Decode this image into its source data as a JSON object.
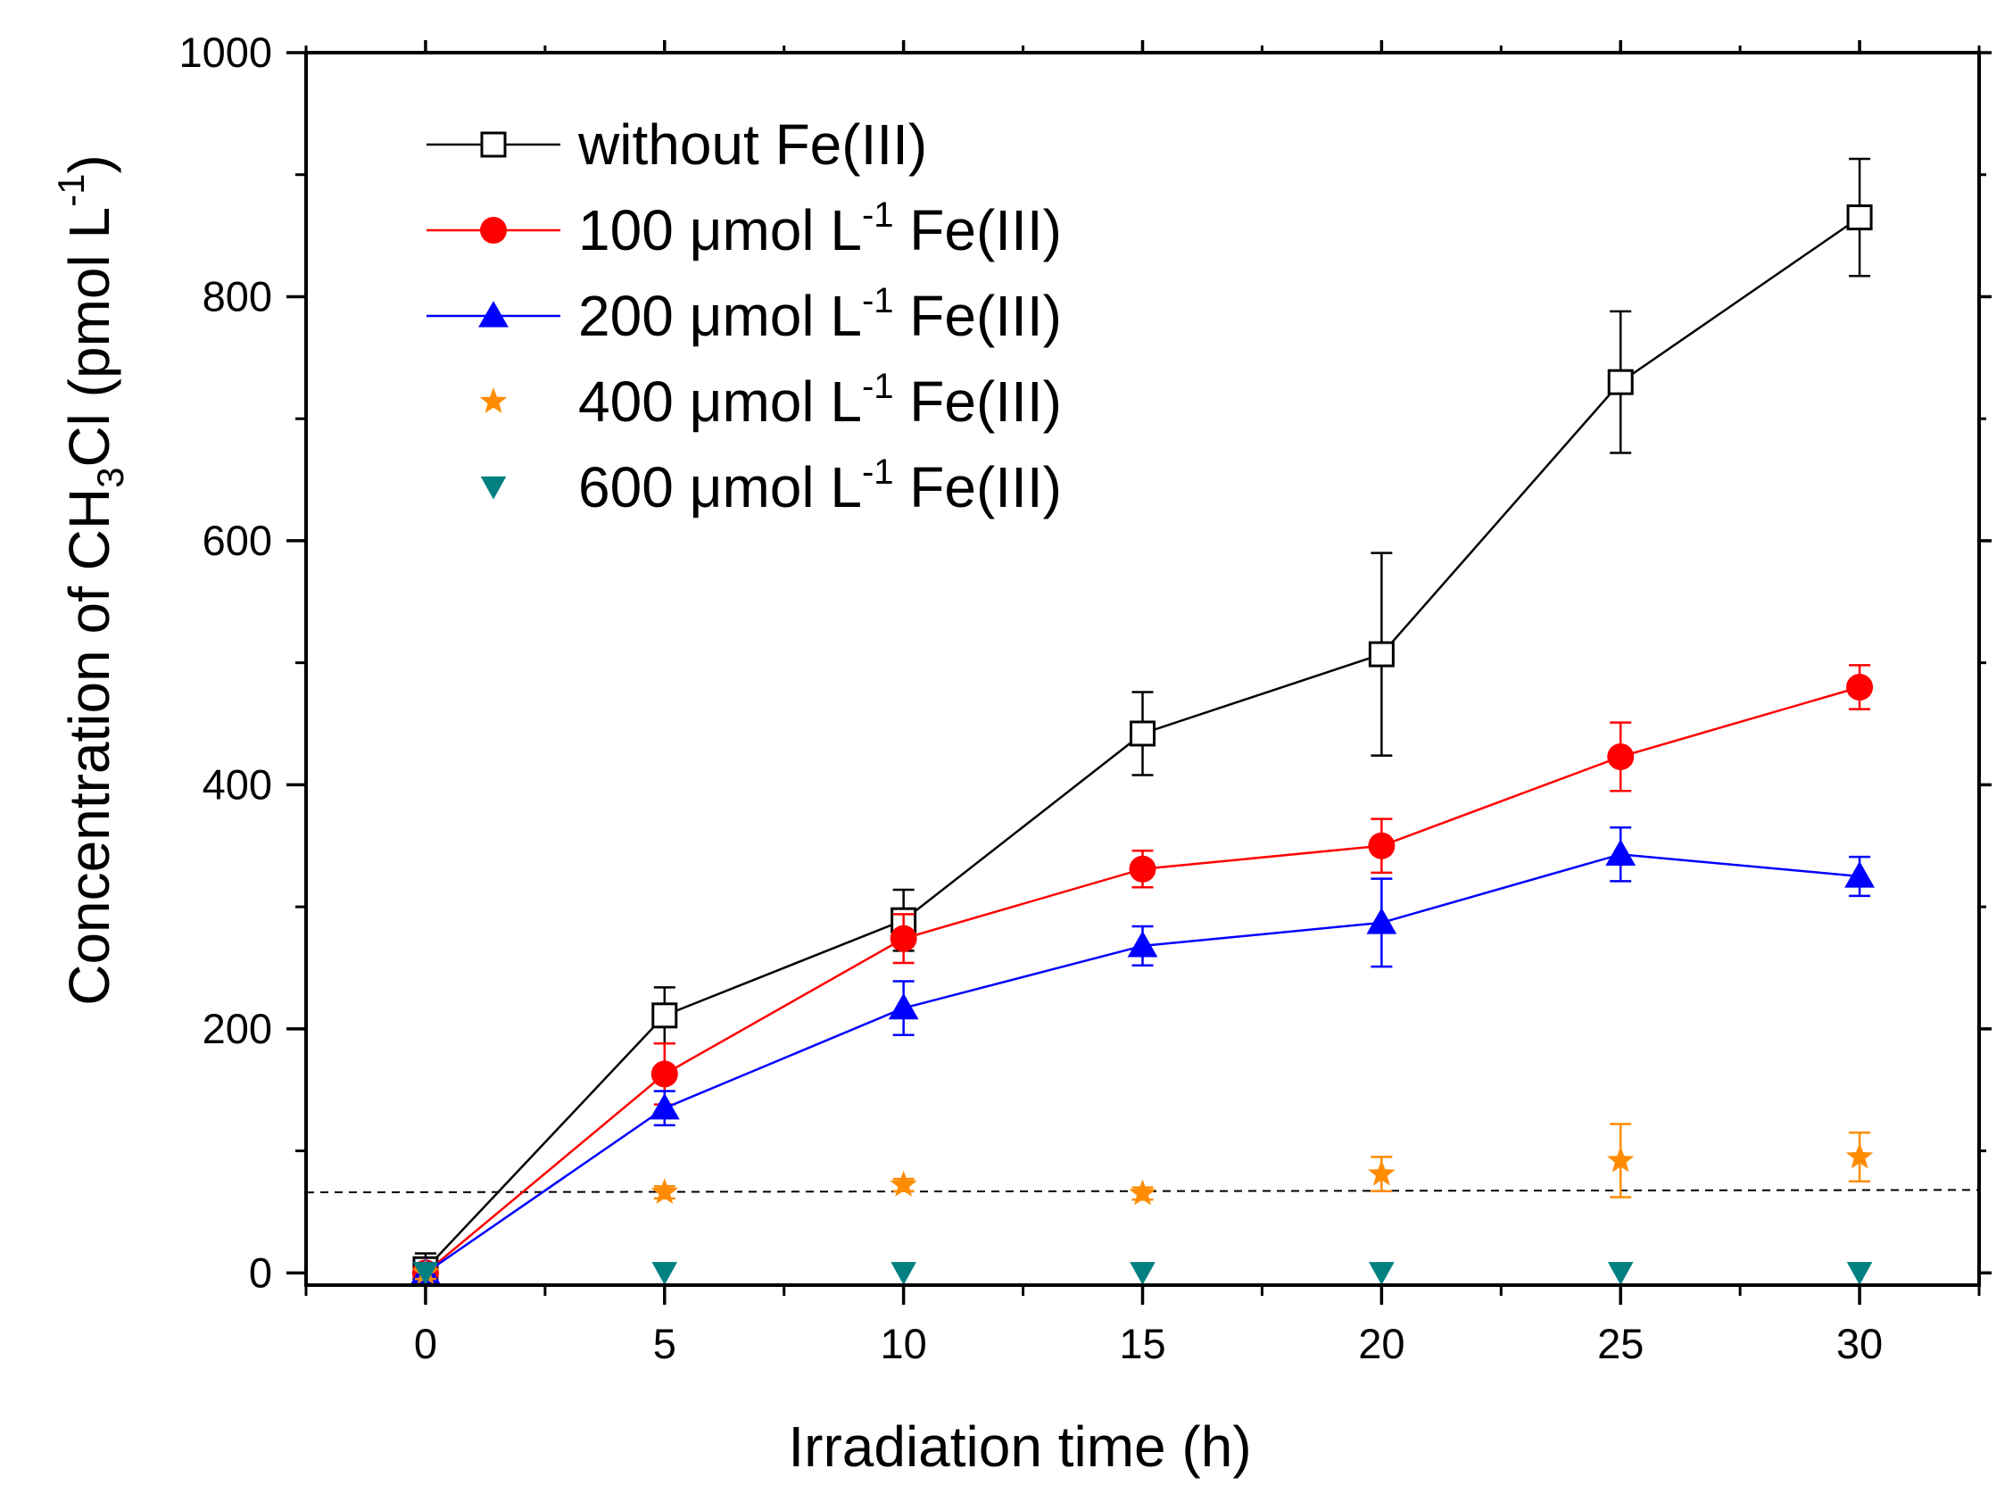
{
  "chart_data": {
    "type": "line",
    "xlabel": "Irradiation time (h)",
    "ylabel": {
      "prefix": "Concentration of CH",
      "sub": "3",
      "mid": "Cl (pmol L",
      "sup": "-1",
      "suffix": ")"
    },
    "xlim": [
      -2.5,
      32.5
    ],
    "ylim": [
      -10,
      1000
    ],
    "x": [
      0,
      5,
      10,
      15,
      20,
      25,
      30
    ],
    "xticks": [
      0,
      5,
      10,
      15,
      20,
      25,
      30
    ],
    "xtick_labels": [
      "0",
      "5",
      "10",
      "15",
      "20",
      "25",
      "30"
    ],
    "yticks": [
      0,
      200,
      400,
      600,
      800,
      1000
    ],
    "ytick_labels": [
      "0",
      "200",
      "400",
      "600",
      "800",
      "1000"
    ],
    "yminor": [
      100,
      300,
      500,
      700,
      900
    ],
    "xminor": [
      -2.5,
      2.5,
      7.5,
      12.5,
      17.5,
      22.5,
      27.5,
      32.5
    ],
    "reference_line": {
      "y_start": 66,
      "y_end": 68,
      "style": "dashed"
    },
    "series": [
      {
        "name": "without Fe(III)",
        "legend": {
          "conc": "",
          "unit": "",
          "sup": "",
          "label": "without Fe(III)"
        },
        "marker": "square-open",
        "color": "#000000",
        "line": true,
        "values": [
          3,
          211,
          289,
          442,
          507,
          730,
          865
        ],
        "errors": [
          13,
          23,
          25,
          34,
          83,
          58,
          48
        ]
      },
      {
        "name": "100 μmol L-1 Fe(III)",
        "legend": {
          "conc": "100 ",
          "unit": "μmol L",
          "sup": "-1",
          "label": " Fe(III)"
        },
        "marker": "circle",
        "color": "#ff0000",
        "line": true,
        "values": [
          0,
          163,
          274,
          331,
          350,
          423,
          480
        ],
        "errors": [
          8,
          25,
          20,
          15,
          22,
          28,
          18
        ]
      },
      {
        "name": "200 μmol L-1 Fe(III)",
        "legend": {
          "conc": "200 ",
          "unit": "μmol L",
          "sup": "-1",
          "label": " Fe(III)"
        },
        "marker": "triangle-up",
        "color": "#0000ff",
        "line": true,
        "values": [
          0,
          135,
          217,
          268,
          287,
          343,
          325
        ],
        "errors": [
          8,
          14,
          22,
          16,
          36,
          22,
          16
        ]
      },
      {
        "name": "400 μmol L-1 Fe(III)",
        "legend": {
          "conc": "400 ",
          "unit": "μmol L",
          "sup": "-1",
          "label": " Fe(III)"
        },
        "marker": "star",
        "color": "#ff8c00",
        "line": false,
        "values": [
          0,
          66,
          72,
          65,
          81,
          92,
          95
        ],
        "errors": [
          5,
          5,
          5,
          5,
          14,
          30,
          20
        ]
      },
      {
        "name": "600 μmol L-1 Fe(III)",
        "legend": {
          "conc": "600 ",
          "unit": "μmol L",
          "sup": "-1",
          "label": " Fe(III)"
        },
        "marker": "triangle-down",
        "color": "#008080",
        "line": false,
        "values": [
          0,
          0,
          0,
          0,
          0,
          0,
          0
        ],
        "errors": [
          0,
          0,
          0,
          0,
          0,
          0,
          0
        ]
      }
    ]
  }
}
